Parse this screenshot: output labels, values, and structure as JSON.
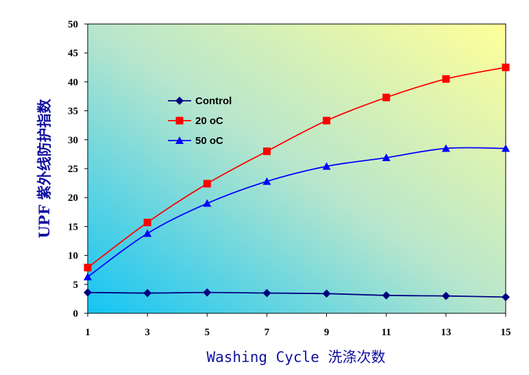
{
  "chart_data": {
    "type": "line",
    "title": "",
    "xlabel": "Washing Cycle 洗涤次数",
    "ylabel": "UPF 紫外线防护指数",
    "x": [
      1,
      3,
      5,
      7,
      9,
      11,
      13,
      15
    ],
    "x_ticks": [
      "1",
      "3",
      "5",
      "7",
      "9",
      "11",
      "13",
      "15"
    ],
    "y_ticks": [
      "0",
      "5",
      "10",
      "15",
      "20",
      "25",
      "30",
      "35",
      "40",
      "45",
      "50"
    ],
    "ylim": [
      0,
      50
    ],
    "xlim": [
      1,
      15
    ],
    "grid": false,
    "legend_position": "upper-left-inside",
    "background": "gradient from cyan (bottom-left) to pale yellow (top-right)",
    "series": [
      {
        "name": "Control",
        "values": [
          3.6,
          3.5,
          3.6,
          3.5,
          3.4,
          3.1,
          3.0,
          2.8
        ],
        "color": "#000080",
        "marker": "diamond"
      },
      {
        "name": "20 oC",
        "values": [
          7.9,
          15.7,
          22.4,
          28.0,
          33.3,
          37.3,
          40.5,
          42.5
        ],
        "color": "#ff0000",
        "marker": "square"
      },
      {
        "name": "50 oC",
        "values": [
          6.3,
          13.8,
          19.0,
          22.8,
          25.4,
          26.9,
          28.5,
          28.5
        ],
        "color": "#0000ff",
        "marker": "triangle"
      }
    ]
  }
}
